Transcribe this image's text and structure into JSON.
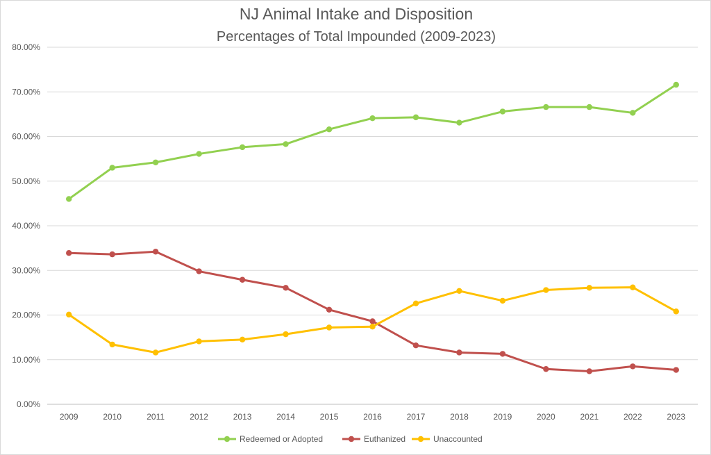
{
  "chart_data": {
    "type": "line",
    "title": "NJ Animal Intake and Disposition",
    "subtitle": "Percentages of Total Impounded (2009-2023)",
    "xlabel": "",
    "ylabel": "",
    "categories": [
      "2009",
      "2010",
      "2011",
      "2012",
      "2013",
      "2014",
      "2015",
      "2016",
      "2017",
      "2018",
      "2019",
      "2020",
      "2021",
      "2022",
      "2023"
    ],
    "y_ticks": [
      "0.00%",
      "10.00%",
      "20.00%",
      "30.00%",
      "40.00%",
      "50.00%",
      "60.00%",
      "70.00%",
      "80.00%"
    ],
    "ylim": [
      0,
      80
    ],
    "grid": true,
    "legend_position": "bottom",
    "series": [
      {
        "name": "Redeemed or Adopted",
        "color": "#92d050",
        "values": [
          46.0,
          53.0,
          54.2,
          56.1,
          57.6,
          58.3,
          61.6,
          64.1,
          64.3,
          63.1,
          65.6,
          66.6,
          66.6,
          65.3,
          71.6
        ]
      },
      {
        "name": "Euthanized",
        "color": "#c0504d",
        "values": [
          33.9,
          33.6,
          34.2,
          29.8,
          27.9,
          26.1,
          21.2,
          18.6,
          13.2,
          11.6,
          11.3,
          7.9,
          7.4,
          8.5,
          7.7
        ]
      },
      {
        "name": "Unaccounted",
        "color": "#ffc000",
        "values": [
          20.1,
          13.4,
          11.6,
          14.1,
          14.5,
          15.7,
          17.2,
          17.4,
          22.6,
          25.4,
          23.2,
          25.6,
          26.1,
          26.2,
          20.8
        ]
      }
    ]
  }
}
